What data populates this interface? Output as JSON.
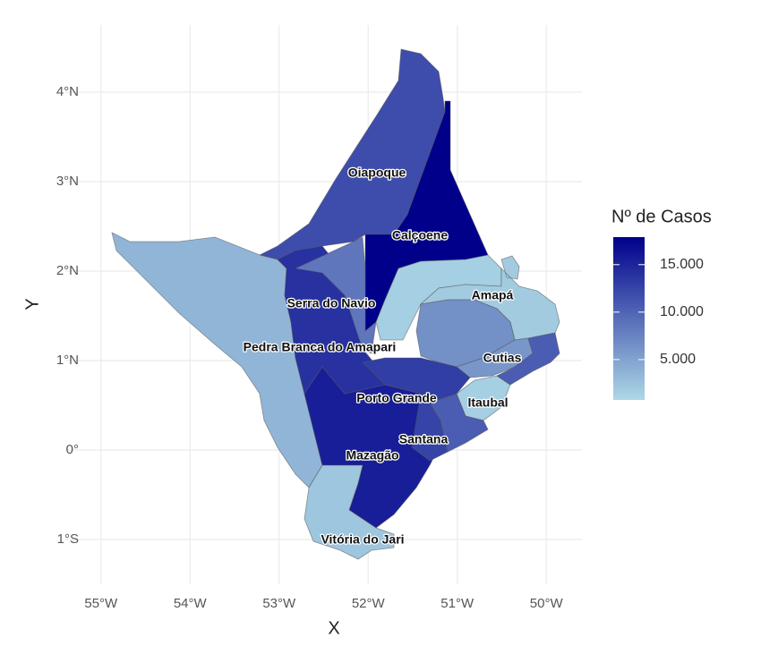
{
  "map": {
    "type": "choropleth",
    "xlabel": "X",
    "ylabel": "Y",
    "xlim": [
      -55.4,
      -49.6
    ],
    "ylim": [
      -1.5,
      4.75
    ],
    "xticks": [
      {
        "value": -55,
        "label": "55°W"
      },
      {
        "value": -54,
        "label": "54°W"
      },
      {
        "value": -53,
        "label": "53°W"
      },
      {
        "value": -52,
        "label": "52°W"
      },
      {
        "value": -51,
        "label": "51°W"
      },
      {
        "value": -50,
        "label": "50°W"
      }
    ],
    "yticks": [
      {
        "value": -1,
        "label": "1°S"
      },
      {
        "value": 0,
        "label": "0°"
      },
      {
        "value": 1,
        "label": "1°N"
      },
      {
        "value": 2,
        "label": "2°N"
      },
      {
        "value": 3,
        "label": "3°N"
      },
      {
        "value": 4,
        "label": "4°N"
      }
    ],
    "grid": true,
    "legend": {
      "title": "Nº de Casos",
      "limits": [
        750,
        17900
      ],
      "color_low": "#add8e6",
      "color_high": "#00008b",
      "ticks": [
        {
          "value": 5000,
          "label": "5.000"
        },
        {
          "value": 10000,
          "label": "10.000"
        },
        {
          "value": 15000,
          "label": "15.000"
        }
      ]
    },
    "regions": [
      {
        "name": "Oiapoque",
        "value": 11800
      },
      {
        "name": "Calçoene",
        "value": 17900
      },
      {
        "value": 3500
      },
      {
        "name": "Pedra Branca do Amapari",
        "value": 14000
      },
      {
        "name": "Serra do Navio",
        "value": 8500
      },
      {
        "name": "Mazagão",
        "value": 15500
      },
      {
        "name": "Vitória do Jari",
        "value": 2200
      },
      {
        "value": 1500
      },
      {
        "name": "Amapá",
        "value": 1800
      },
      {
        "value": 6500
      },
      {
        "name": "Cutias",
        "value": 6000
      },
      {
        "name": "Itaubal",
        "value": 1500
      },
      {
        "value": 10500
      },
      {
        "name": "Porto Grande",
        "value": 13000
      },
      {
        "name": "Santana",
        "value": 12500
      }
    ]
  }
}
